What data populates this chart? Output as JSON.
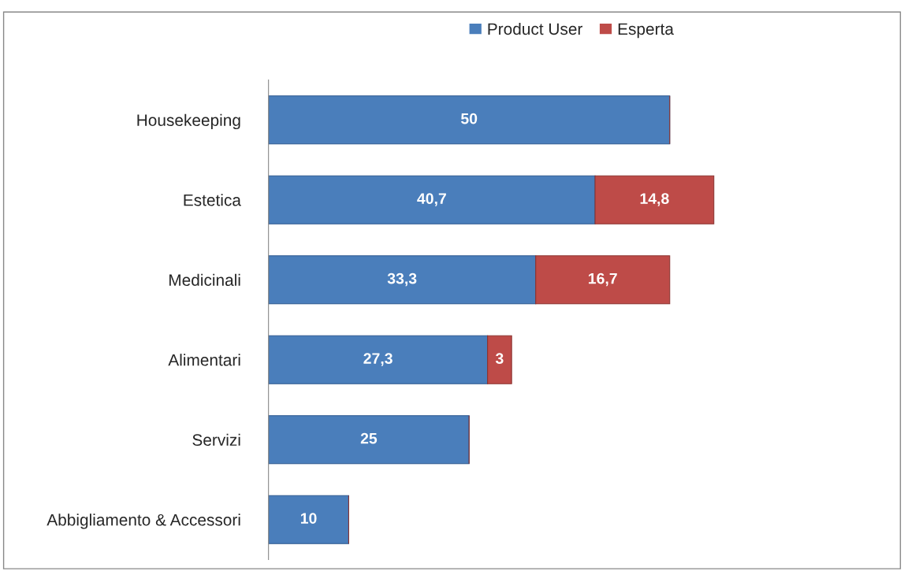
{
  "chart_data": {
    "type": "bar",
    "orientation": "horizontal",
    "stacked": true,
    "legend": "top",
    "grid": false,
    "tick_labels": "y",
    "categories": [
      "Housekeeping",
      "Estetica",
      "Medicinali",
      "Alimentari",
      "Servizi",
      "Abbigliamento & Accessori"
    ],
    "series": [
      {
        "name": "Product User",
        "color": "#4a7ebb",
        "values": [
          50,
          40.7,
          33.3,
          27.3,
          25,
          10
        ],
        "value_labels": [
          "50",
          "40,7",
          "33,3",
          "27,3",
          "25",
          "10"
        ]
      },
      {
        "name": "Esperta",
        "color": "#be4b48",
        "values": [
          null,
          14.8,
          16.7,
          3,
          null,
          null
        ],
        "value_labels": [
          null,
          "14,8",
          "16,7",
          "3",
          null,
          null
        ]
      }
    ]
  }
}
